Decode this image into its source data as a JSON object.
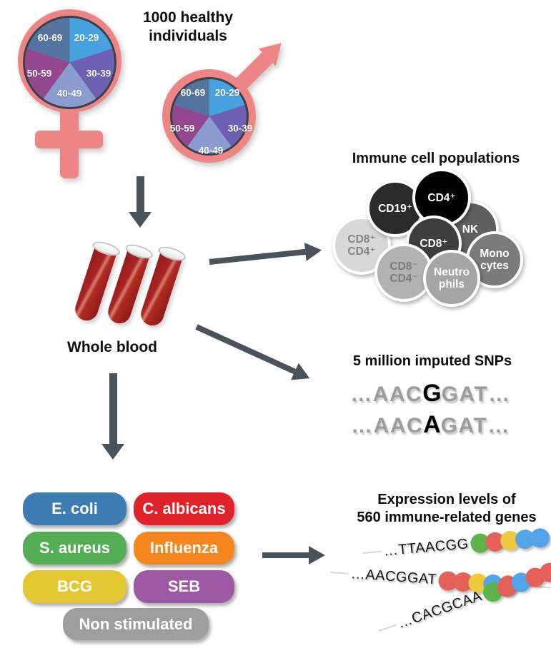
{
  "header": {
    "title_line1": "1000 healthy",
    "title_line2": "individuals"
  },
  "demographics": {
    "symbol_color": "#ee8585",
    "age_groups": [
      {
        "label": "20-29",
        "color": "#47a2e0"
      },
      {
        "label": "30-39",
        "color": "#6e61b3"
      },
      {
        "label": "40-49",
        "color": "#8b9cd1"
      },
      {
        "label": "50-59",
        "color": "#92478f"
      },
      {
        "label": "60-69",
        "color": "#53749e"
      }
    ]
  },
  "blood": {
    "label": "Whole blood",
    "tube_color": "#a82121"
  },
  "arrow_color": "#4a525a",
  "immune_cells": {
    "title": "Immune cell populations",
    "cells": [
      {
        "name": "CD8+CD4+",
        "lines": [
          "CD8⁺",
          "CD4⁺"
        ],
        "bg": "#d8d8d8",
        "fg": "#858585"
      },
      {
        "name": "CD19+",
        "lines": [
          "CD19⁺"
        ],
        "bg": "#2b2b2b",
        "fg": "#ffffff"
      },
      {
        "name": "NK",
        "lines": [
          "NK"
        ],
        "bg": "#606060",
        "fg": "#ffffff"
      },
      {
        "name": "CD4+",
        "lines": [
          "CD4⁺"
        ],
        "bg": "#000000",
        "fg": "#ffffff"
      },
      {
        "name": "CD8+",
        "lines": [
          "CD8⁺"
        ],
        "bg": "#3e3e3e",
        "fg": "#ffffff"
      },
      {
        "name": "Monocytes",
        "lines": [
          "Mono",
          "cytes"
        ],
        "bg": "#7b7b7b",
        "fg": "#ffffff"
      },
      {
        "name": "CD8-CD4-",
        "lines": [
          "CD8⁻",
          "CD4⁻"
        ],
        "bg": "#b2b2b2",
        "fg": "#7d7d7d"
      },
      {
        "name": "Neutrophils",
        "lines": [
          "Neutro",
          "phils"
        ],
        "bg": "#a5a5a5",
        "fg": "#ffffff"
      }
    ]
  },
  "snps": {
    "title": "5 million imputed SNPs",
    "sequences": [
      {
        "prefix": "…AAC",
        "variant": "G",
        "suffix": "GAT…"
      },
      {
        "prefix": "…AAC",
        "variant": "A",
        "suffix": "GAT…"
      }
    ]
  },
  "stimulations": [
    {
      "label": "E. coli",
      "color": "#3d7db3"
    },
    {
      "label": "C. albicans",
      "color": "#e0222a"
    },
    {
      "label": "S. aureus",
      "color": "#54ae54"
    },
    {
      "label": "Influenza",
      "color": "#f5851f"
    },
    {
      "label": "BCG",
      "color": "#e4c832"
    },
    {
      "label": "SEB",
      "color": "#9e59a5"
    },
    {
      "label": "Non stimulated",
      "color": "#9e9e9e"
    }
  ],
  "expression": {
    "title_line1": "Expression levels of",
    "title_line2": "560 immune-related genes",
    "dot_colors": {
      "green": "#5db44b",
      "red": "#e56158",
      "yellow": "#efc93d",
      "blue": "#54a4e9"
    },
    "strands": [
      {
        "sequence": "…TTAACGG",
        "dots": [
          "green",
          "red",
          "yellow",
          "blue",
          "blue"
        ]
      },
      {
        "sequence": "…AACGGAT",
        "dots": [
          "red",
          "red",
          "yellow",
          "blue",
          "red"
        ]
      },
      {
        "sequence": "…CACGCAA",
        "dots": [
          "green",
          "red",
          "blue",
          "red",
          "red"
        ]
      }
    ]
  }
}
